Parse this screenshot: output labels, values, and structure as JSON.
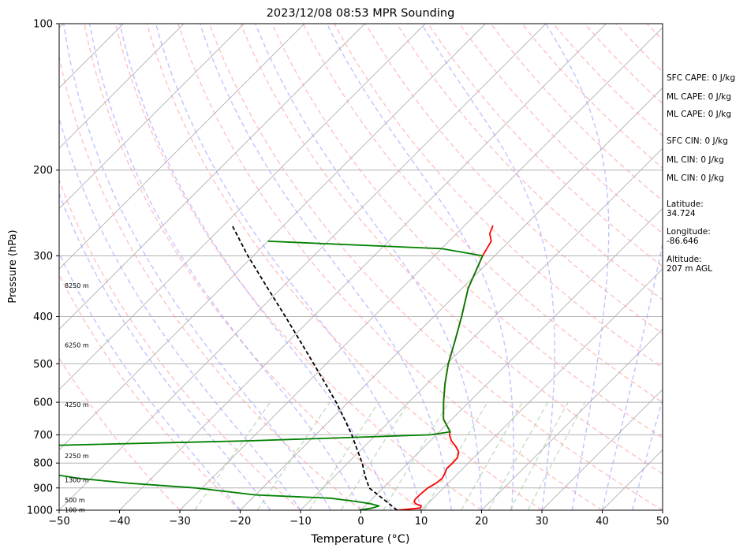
{
  "chart_data": {
    "type": "line",
    "subtype": "skew-t log-p sounding",
    "title": "2023/12/08 08:53 MPR Sounding",
    "xlabel": "Temperature (°C)",
    "ylabel": "Pressure (hPa)",
    "xlim": [
      -50,
      50
    ],
    "ylim": [
      1000,
      100
    ],
    "yscale": "log",
    "x_ticks": [
      -50,
      -40,
      -30,
      -20,
      -10,
      0,
      10,
      20,
      30,
      40,
      50
    ],
    "y_ticks": [
      1000,
      900,
      800,
      700,
      600,
      500,
      400,
      300,
      200,
      100
    ],
    "grid": true,
    "series": [
      {
        "key": "temperature",
        "color": "#ff0000",
        "style": "solid",
        "points": [
          [
            1000,
            6.0
          ],
          [
            990,
            9.5
          ],
          [
            980,
            9.3
          ],
          [
            970,
            8.0
          ],
          [
            960,
            7.4
          ],
          [
            950,
            7.2
          ],
          [
            930,
            7.2
          ],
          [
            900,
            7.4
          ],
          [
            880,
            8.0
          ],
          [
            860,
            8.2
          ],
          [
            840,
            7.8
          ],
          [
            820,
            7.3
          ],
          [
            800,
            7.4
          ],
          [
            780,
            7.3
          ],
          [
            760,
            6.6
          ],
          [
            740,
            5.2
          ],
          [
            720,
            3.5
          ],
          [
            700,
            2.2
          ],
          [
            690,
            1.8
          ],
          [
            650,
            -1.4
          ],
          [
            600,
            -4.2
          ],
          [
            550,
            -7.0
          ],
          [
            500,
            -9.8
          ],
          [
            450,
            -12.4
          ],
          [
            400,
            -15.4
          ],
          [
            350,
            -19.0
          ],
          [
            300,
            -22.0
          ],
          [
            280,
            -23.0
          ],
          [
            270,
            -24.5
          ],
          [
            260,
            -25.3
          ]
        ]
      },
      {
        "key": "dewpoint",
        "color": "#008000",
        "style": "solid",
        "points": [
          [
            1000,
            -0.3
          ],
          [
            990,
            1.5
          ],
          [
            980,
            2.3
          ],
          [
            970,
            0.5
          ],
          [
            960,
            -2.0
          ],
          [
            945,
            -7.0
          ],
          [
            930,
            -20.0
          ],
          [
            900,
            -31.0
          ],
          [
            880,
            -43.0
          ],
          [
            860,
            -52.0
          ],
          [
            850,
            -55.0
          ],
          [
            800,
            -72.0
          ],
          [
            760,
            -85.0
          ],
          [
            740,
            -70.0
          ],
          [
            720,
            -30.0
          ],
          [
            700,
            -1.0
          ],
          [
            690,
            1.8
          ],
          [
            650,
            -1.4
          ],
          [
            600,
            -4.2
          ],
          [
            550,
            -7.0
          ],
          [
            500,
            -9.8
          ],
          [
            450,
            -12.4
          ],
          [
            400,
            -15.4
          ],
          [
            350,
            -19.0
          ],
          [
            300,
            -22.0
          ],
          [
            290,
            -30.0
          ],
          [
            280,
            -60.0
          ]
        ]
      },
      {
        "key": "parcel",
        "color": "#000000",
        "style": "dashed",
        "points": [
          [
            1000,
            6.0
          ],
          [
            950,
            2.0
          ],
          [
            900,
            -2.3
          ],
          [
            850,
            -5.0
          ],
          [
            800,
            -7.6
          ],
          [
            750,
            -10.7
          ],
          [
            700,
            -14.0
          ],
          [
            650,
            -17.8
          ],
          [
            600,
            -22.0
          ],
          [
            550,
            -26.8
          ],
          [
            500,
            -32.1
          ],
          [
            450,
            -38.0
          ],
          [
            400,
            -44.6
          ],
          [
            350,
            -52.2
          ],
          [
            300,
            -60.9
          ],
          [
            260,
            -68.5
          ]
        ]
      }
    ],
    "height_labels": [
      {
        "text": "100 m",
        "pressure": 1000
      },
      {
        "text": "500 m",
        "pressure": 955
      },
      {
        "text": "1300 m",
        "pressure": 868
      },
      {
        "text": "2250 m",
        "pressure": 774
      },
      {
        "text": "4250 m",
        "pressure": 608
      },
      {
        "text": "6250 m",
        "pressure": 458
      },
      {
        "text": "8250 m",
        "pressure": 346
      }
    ],
    "background_lines": {
      "isotherms": {
        "color": "#b0b0b0"
      },
      "dry_adiabats": {
        "color": "#ff9999"
      },
      "moist_adiabats": {
        "color": "#9999ff"
      },
      "mixing_ratio": {
        "color": "#99cc99"
      }
    }
  },
  "info_panel": [
    "SFC CAPE: 0 J/kg",
    "ML CAPE: 0 J/kg",
    "ML CAPE: 0 J/kg",
    "SFC CIN: 0 J/kg",
    "ML CIN: 0 J/kg",
    "ML CIN: 0 J/kg",
    "Latitude:\n34.724",
    "Longitude:\n-86.646",
    "Altitude:\n207 m AGL"
  ]
}
